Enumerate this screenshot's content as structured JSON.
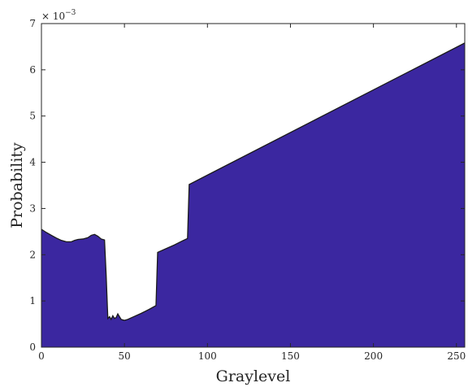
{
  "chart_data": {
    "type": "area",
    "title": "",
    "xlabel": "Graylevel",
    "ylabel": "Probability",
    "y_exponent_label": "× 10",
    "y_exponent_power": "−3",
    "xlim": [
      0,
      255
    ],
    "ylim": [
      0,
      7
    ],
    "y_scale_factor": 0.001,
    "x_ticks": [
      0,
      50,
      100,
      150,
      200,
      250
    ],
    "y_ticks": [
      0,
      1,
      2,
      3,
      4,
      5,
      6,
      7
    ],
    "grid": false,
    "fill_color": "#3b27a0",
    "line_color": "#1a1a1a",
    "series": [
      {
        "x": [
          0,
          3,
          6,
          9,
          12,
          15,
          18,
          20,
          22,
          25,
          28,
          30,
          32,
          34,
          36,
          38,
          39,
          40,
          41,
          42,
          43,
          44,
          45,
          46,
          47,
          48,
          50,
          52,
          55,
          60,
          65,
          69,
          70,
          75,
          80,
          85,
          88,
          89,
          255
        ],
        "y": [
          2.55,
          2.48,
          2.42,
          2.36,
          2.31,
          2.28,
          2.28,
          2.31,
          2.33,
          2.34,
          2.37,
          2.42,
          2.44,
          2.4,
          2.34,
          2.32,
          1.55,
          0.62,
          0.66,
          0.6,
          0.68,
          0.62,
          0.64,
          0.72,
          0.66,
          0.6,
          0.58,
          0.6,
          0.65,
          0.73,
          0.82,
          0.9,
          2.05,
          2.13,
          2.21,
          2.3,
          2.35,
          3.52,
          6.58
        ]
      }
    ]
  }
}
